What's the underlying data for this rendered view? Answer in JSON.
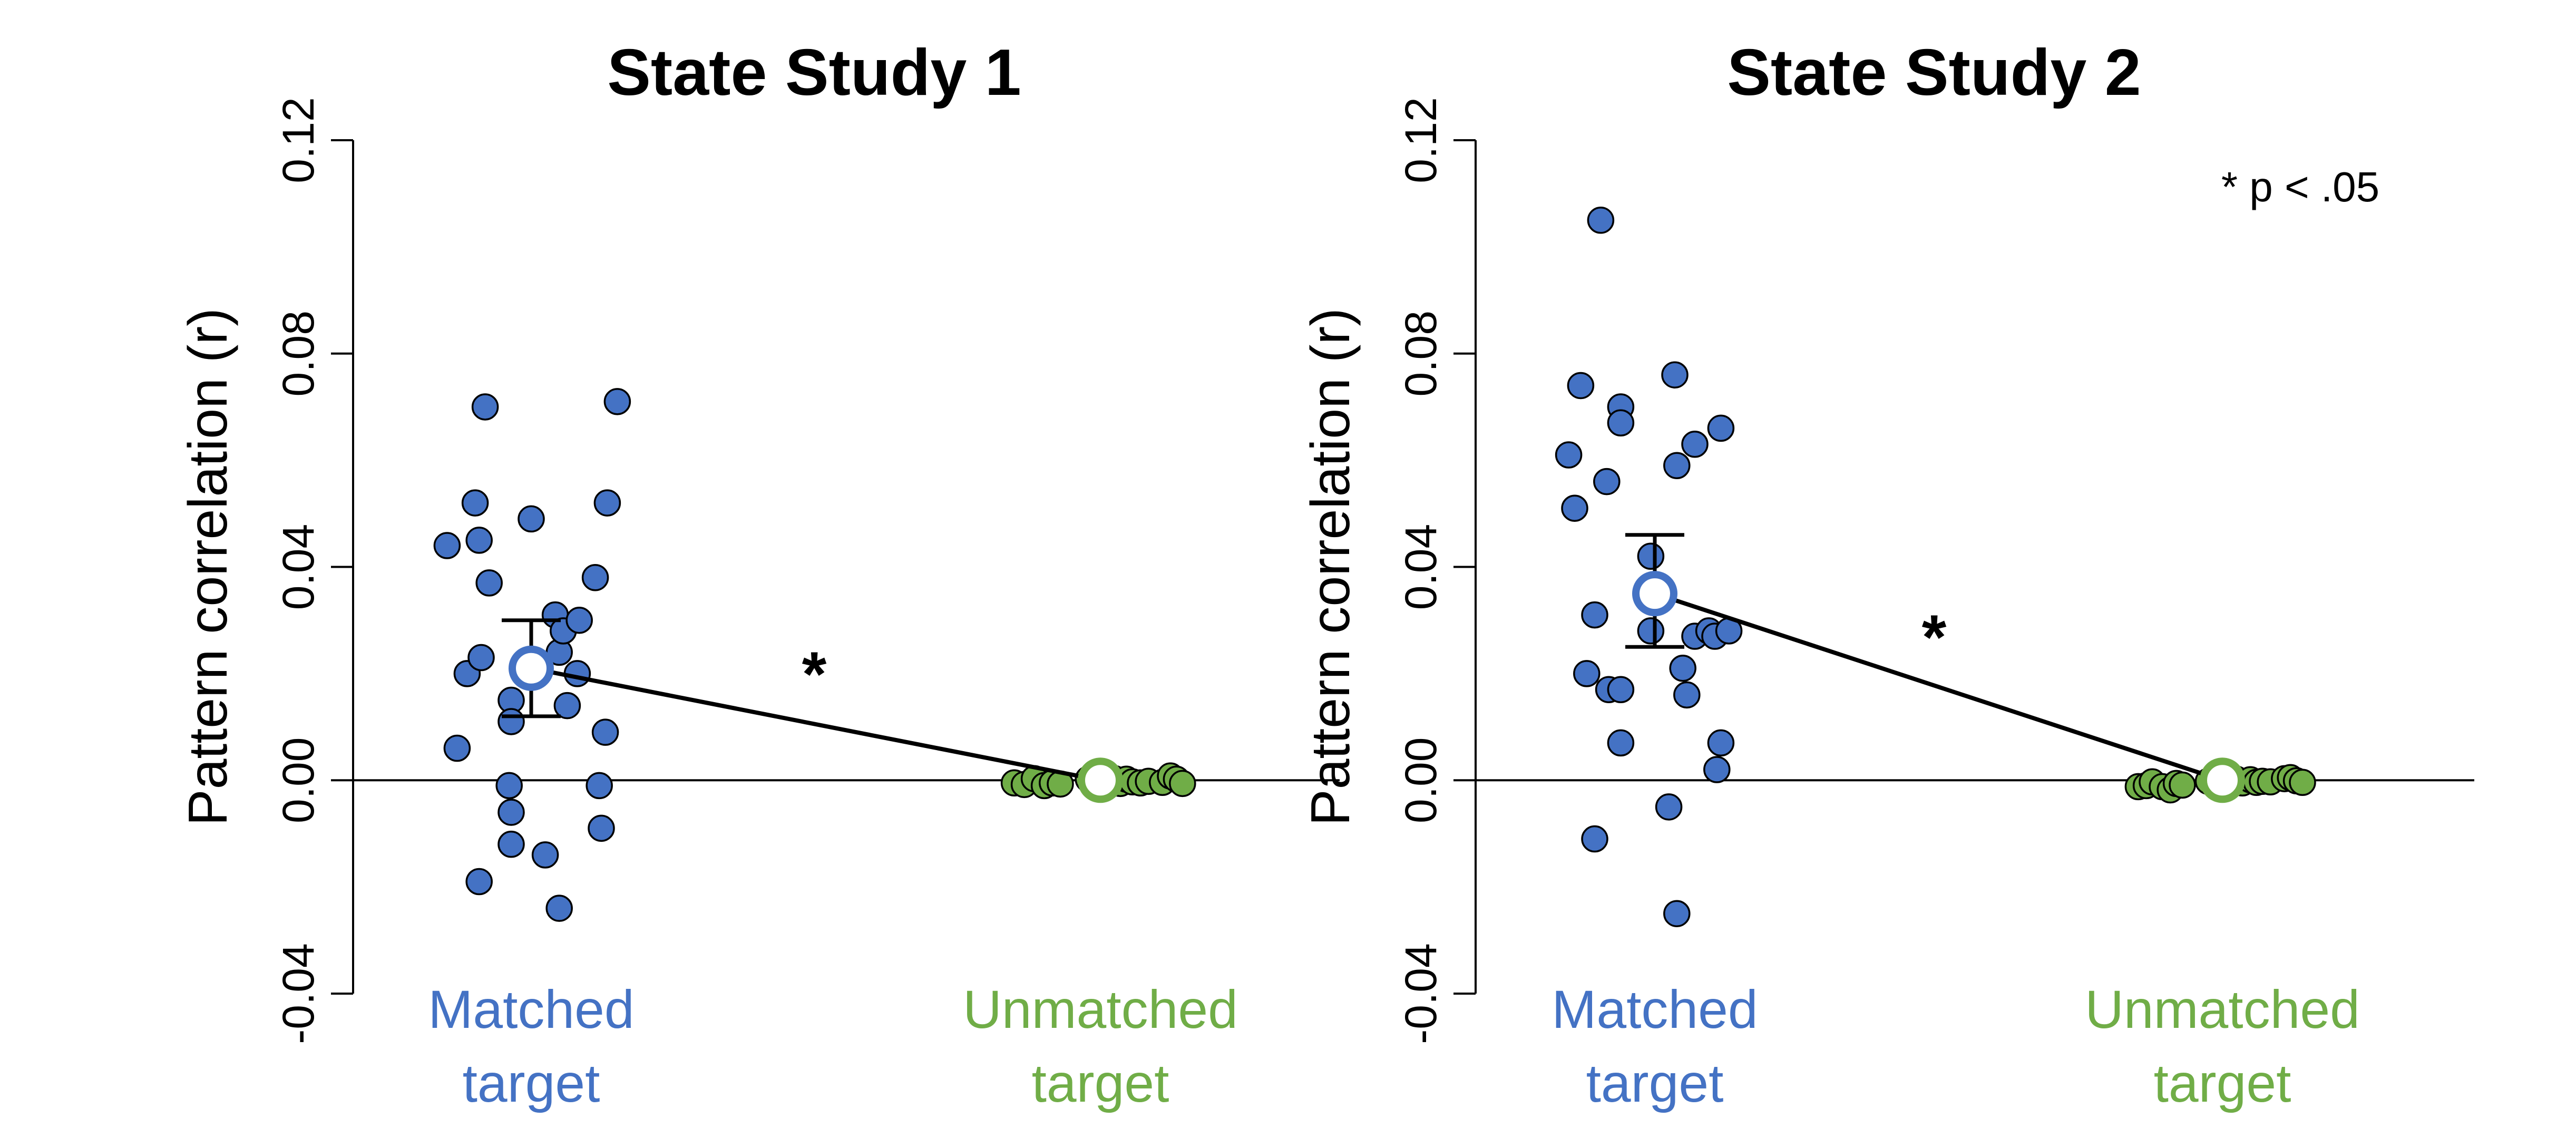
{
  "colors": {
    "matched": "#4472C4",
    "unmatched": "#70AD47",
    "axis": "#000000"
  },
  "chart_data": [
    {
      "type": "scatter",
      "title": "State Study 1",
      "ylabel": "Pattern correlation (r)",
      "ylim": [
        -0.04,
        0.12
      ],
      "yticks": [
        -0.04,
        0,
        0.04,
        0.08,
        0.12
      ],
      "ytick_labels": [
        "-0.04",
        "0.00",
        "0.04",
        "0.08",
        "0.12"
      ],
      "categories": [
        {
          "key": "matched",
          "line1": "Matched",
          "line2": "target"
        },
        {
          "key": "unmatched",
          "line1": "Unmatched",
          "line2": "target"
        }
      ],
      "significance": "*",
      "annotation": "",
      "groups": [
        {
          "key": "matched",
          "mean": 0.021,
          "ci": [
            0.012,
            0.03
          ],
          "points": [
            {
              "jitter": -0.42,
              "y": 0.044
            },
            {
              "jitter": -0.37,
              "y": 0.006
            },
            {
              "jitter": -0.32,
              "y": 0.02
            },
            {
              "jitter": -0.28,
              "y": 0.052
            },
            {
              "jitter": -0.26,
              "y": 0.045
            },
            {
              "jitter": -0.25,
              "y": 0.023
            },
            {
              "jitter": -0.26,
              "y": -0.019
            },
            {
              "jitter": -0.23,
              "y": 0.07
            },
            {
              "jitter": -0.21,
              "y": 0.037
            },
            {
              "jitter": -0.1,
              "y": 0.015
            },
            {
              "jitter": -0.1,
              "y": 0.011
            },
            {
              "jitter": -0.11,
              "y": -0.001
            },
            {
              "jitter": -0.1,
              "y": -0.006
            },
            {
              "jitter": -0.1,
              "y": -0.012
            },
            {
              "jitter": 0.0,
              "y": 0.049
            },
            {
              "jitter": 0.07,
              "y": -0.014
            },
            {
              "jitter": 0.12,
              "y": 0.031
            },
            {
              "jitter": 0.14,
              "y": 0.024
            },
            {
              "jitter": 0.16,
              "y": 0.028
            },
            {
              "jitter": 0.18,
              "y": 0.014
            },
            {
              "jitter": 0.23,
              "y": 0.02
            },
            {
              "jitter": 0.24,
              "y": 0.03
            },
            {
              "jitter": 0.14,
              "y": -0.024
            },
            {
              "jitter": 0.32,
              "y": 0.038
            },
            {
              "jitter": 0.34,
              "y": -0.001
            },
            {
              "jitter": 0.35,
              "y": -0.009
            },
            {
              "jitter": 0.37,
              "y": 0.009
            },
            {
              "jitter": 0.38,
              "y": 0.052
            },
            {
              "jitter": 0.43,
              "y": 0.071
            }
          ]
        },
        {
          "key": "unmatched",
          "mean": 0.0,
          "ci": [
            0.0,
            0.0
          ],
          "points": [
            {
              "jitter": -0.43,
              "y": -0.0005
            },
            {
              "jitter": -0.38,
              "y": -0.0008
            },
            {
              "jitter": -0.33,
              "y": 0.0003
            },
            {
              "jitter": -0.28,
              "y": -0.001
            },
            {
              "jitter": -0.24,
              "y": -0.0005
            },
            {
              "jitter": -0.2,
              "y": -0.0007
            },
            {
              "jitter": -0.06,
              "y": 0.0002
            },
            {
              "jitter": -0.02,
              "y": -0.0004
            },
            {
              "jitter": 0.07,
              "y": 0.0003
            },
            {
              "jitter": 0.1,
              "y": -0.0006
            },
            {
              "jitter": 0.13,
              "y": 0.0002
            },
            {
              "jitter": 0.16,
              "y": -0.0003
            },
            {
              "jitter": 0.2,
              "y": -0.0005
            },
            {
              "jitter": 0.24,
              "y": -0.0002
            },
            {
              "jitter": 0.31,
              "y": -0.0004
            },
            {
              "jitter": 0.35,
              "y": 0.0008
            },
            {
              "jitter": 0.38,
              "y": 0.0002
            },
            {
              "jitter": 0.41,
              "y": -0.0006
            }
          ]
        }
      ]
    },
    {
      "type": "scatter",
      "title": "State Study 2",
      "ylabel": "Pattern correlation (r)",
      "ylim": [
        -0.04,
        0.12
      ],
      "yticks": [
        -0.04,
        0,
        0.04,
        0.08,
        0.12
      ],
      "ytick_labels": [
        "-0.04",
        "0.00",
        "0.04",
        "0.08",
        "0.12"
      ],
      "categories": [
        {
          "key": "matched",
          "line1": "Matched",
          "line2": "target"
        },
        {
          "key": "unmatched",
          "line1": "Unmatched",
          "line2": "target"
        }
      ],
      "significance": "*",
      "annotation": "* p < .05",
      "groups": [
        {
          "key": "matched",
          "mean": 0.035,
          "ci": [
            0.025,
            0.046
          ],
          "points": [
            {
              "jitter": -0.43,
              "y": 0.061
            },
            {
              "jitter": -0.4,
              "y": 0.051
            },
            {
              "jitter": -0.37,
              "y": 0.074
            },
            {
              "jitter": -0.34,
              "y": 0.02
            },
            {
              "jitter": -0.3,
              "y": 0.031
            },
            {
              "jitter": -0.3,
              "y": -0.011
            },
            {
              "jitter": -0.27,
              "y": 0.105
            },
            {
              "jitter": -0.24,
              "y": 0.056
            },
            {
              "jitter": -0.23,
              "y": 0.017
            },
            {
              "jitter": -0.17,
              "y": 0.07
            },
            {
              "jitter": -0.17,
              "y": 0.067
            },
            {
              "jitter": -0.17,
              "y": 0.017
            },
            {
              "jitter": -0.17,
              "y": 0.007
            },
            {
              "jitter": -0.02,
              "y": 0.028
            },
            {
              "jitter": -0.02,
              "y": 0.042
            },
            {
              "jitter": 0.07,
              "y": -0.005
            },
            {
              "jitter": 0.1,
              "y": 0.076
            },
            {
              "jitter": 0.11,
              "y": 0.059
            },
            {
              "jitter": 0.11,
              "y": -0.025
            },
            {
              "jitter": 0.14,
              "y": 0.021
            },
            {
              "jitter": 0.16,
              "y": 0.016
            },
            {
              "jitter": 0.2,
              "y": 0.063
            },
            {
              "jitter": 0.2,
              "y": 0.027
            },
            {
              "jitter": 0.27,
              "y": 0.028
            },
            {
              "jitter": 0.3,
              "y": 0.027
            },
            {
              "jitter": 0.31,
              "y": 0.002
            },
            {
              "jitter": 0.33,
              "y": 0.007
            },
            {
              "jitter": 0.33,
              "y": 0.066
            },
            {
              "jitter": 0.37,
              "y": 0.028
            }
          ]
        },
        {
          "key": "unmatched",
          "mean": 0.0,
          "ci": [
            0.0,
            0.0
          ],
          "points": [
            {
              "jitter": -0.42,
              "y": -0.0012
            },
            {
              "jitter": -0.38,
              "y": -0.001
            },
            {
              "jitter": -0.35,
              "y": -0.0003
            },
            {
              "jitter": -0.3,
              "y": -0.0012
            },
            {
              "jitter": -0.26,
              "y": -0.0018
            },
            {
              "jitter": -0.23,
              "y": -0.0006
            },
            {
              "jitter": -0.2,
              "y": -0.0009
            },
            {
              "jitter": -0.07,
              "y": -0.0002
            },
            {
              "jitter": 0.07,
              "y": 0.0002
            },
            {
              "jitter": 0.1,
              "y": -0.0005
            },
            {
              "jitter": 0.14,
              "y": 0.0001
            },
            {
              "jitter": 0.17,
              "y": -0.0004
            },
            {
              "jitter": 0.2,
              "y": -0.0002
            },
            {
              "jitter": 0.24,
              "y": -0.0003
            },
            {
              "jitter": 0.31,
              "y": 0.0003
            },
            {
              "jitter": 0.34,
              "y": 0.0005
            },
            {
              "jitter": 0.37,
              "y": -0.0001
            },
            {
              "jitter": 0.4,
              "y": -0.0004
            }
          ]
        }
      ]
    }
  ]
}
